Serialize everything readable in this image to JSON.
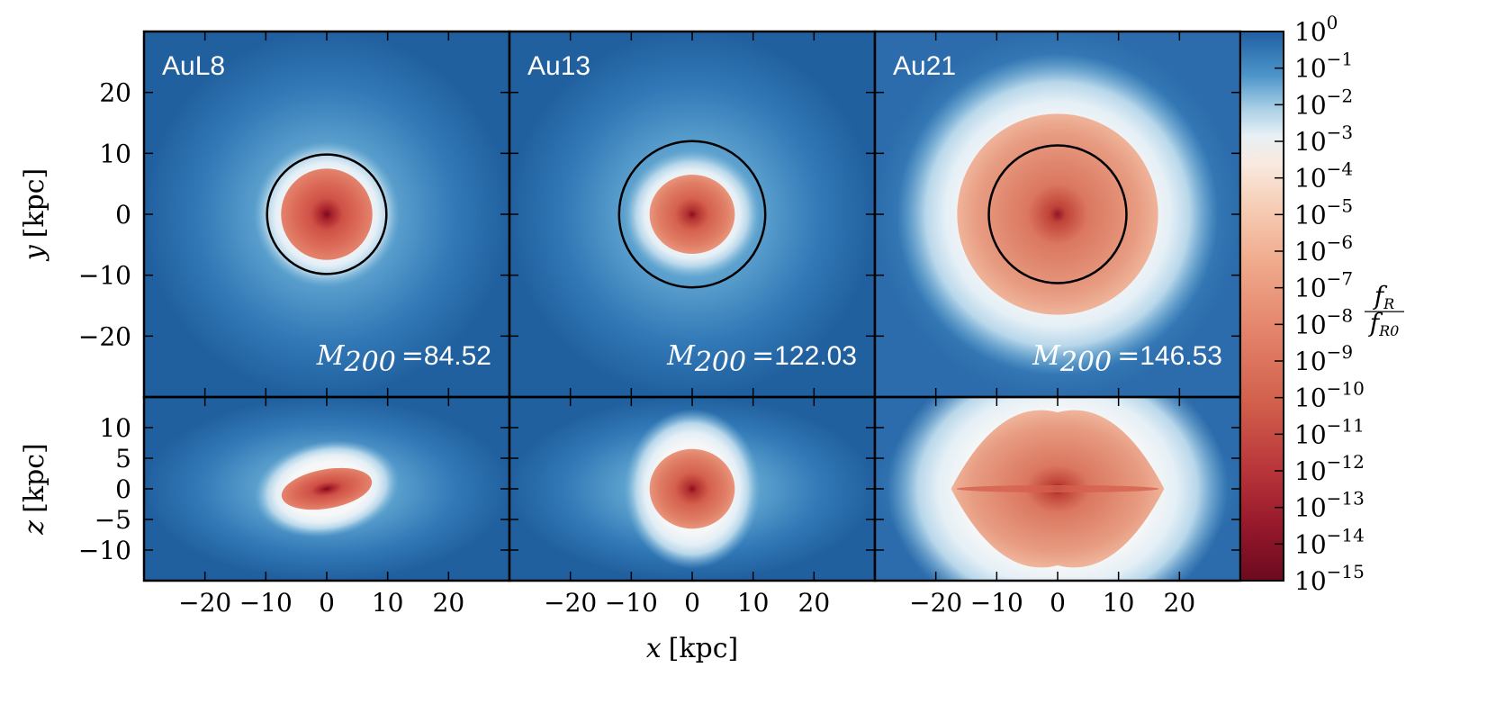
{
  "chart_data": {
    "type": "heatmap",
    "colormap": "RdBu",
    "colorbar": {
      "label_num": "f",
      "label_num_sub": "R",
      "label_den": "f",
      "label_den_sub": "R0",
      "scale": "log",
      "ticks": [
        {
          "base": "10",
          "exp": "0"
        },
        {
          "base": "10",
          "exp": "−1"
        },
        {
          "base": "10",
          "exp": "−2"
        },
        {
          "base": "10",
          "exp": "−3"
        },
        {
          "base": "10",
          "exp": "−4"
        },
        {
          "base": "10",
          "exp": "−5"
        },
        {
          "base": "10",
          "exp": "−6"
        },
        {
          "base": "10",
          "exp": "−7"
        },
        {
          "base": "10",
          "exp": "−8"
        },
        {
          "base": "10",
          "exp": "−9"
        },
        {
          "base": "10",
          "exp": "−10"
        },
        {
          "base": "10",
          "exp": "−11"
        },
        {
          "base": "10",
          "exp": "−12"
        },
        {
          "base": "10",
          "exp": "−13"
        },
        {
          "base": "10",
          "exp": "−14"
        },
        {
          "base": "10",
          "exp": "−15"
        }
      ]
    },
    "xlabel": {
      "var": "x",
      "unit": "[kpc]"
    },
    "ylabel_top": {
      "var": "y",
      "unit": "[kpc]"
    },
    "ylabel_bottom": {
      "var": "z",
      "unit": "[kpc]"
    },
    "xlim": [
      -30,
      30
    ],
    "ylim_top": [
      -30,
      30
    ],
    "ylim_bottom": [
      -15,
      15
    ],
    "xticks": [
      -20,
      -10,
      0,
      10,
      20
    ],
    "xtick_labels": [
      "−20",
      "−10",
      "0",
      "10",
      "20"
    ],
    "yticks_top": [
      20,
      10,
      0,
      -10,
      -20
    ],
    "ytick_labels_top": [
      "20",
      "10",
      "0",
      "−10",
      "−20"
    ],
    "yticks_bottom": [
      10,
      5,
      0,
      -5,
      -10
    ],
    "ytick_labels_bottom": [
      "10",
      "5",
      "0",
      "−5",
      "−10"
    ],
    "mass_symbol": "M",
    "mass_sub": "200",
    "mass_eq": "=",
    "panels": [
      {
        "name": "AuL8",
        "m200": "84.52",
        "r200_circle_kpc": 9.8,
        "screened_region_xy": {
          "rx": 7.5,
          "ry": 7.5
        },
        "screened_region_xz": {
          "rx": 7.5,
          "rz": 3.2,
          "tilt_deg": -10
        },
        "background_level": "10^-1"
      },
      {
        "name": "Au13",
        "m200": "122.03",
        "r200_circle_kpc": 12.0,
        "screened_region_xy": {
          "rx": 7.0,
          "ry": 6.5
        },
        "screened_region_xz": {
          "rx": 7.0,
          "rz": 6.5,
          "tilt_deg": 0
        },
        "background_level": "10^-1"
      },
      {
        "name": "Au21",
        "m200": "146.53",
        "r200_circle_kpc": 11.3,
        "screened_region_xy": {
          "rx": 16.5,
          "ry": 16.5
        },
        "screened_region_xz": {
          "rx": 17.5,
          "rz": 12.5,
          "tilt_deg": 0
        },
        "background_level": "10^-1.5"
      }
    ]
  }
}
